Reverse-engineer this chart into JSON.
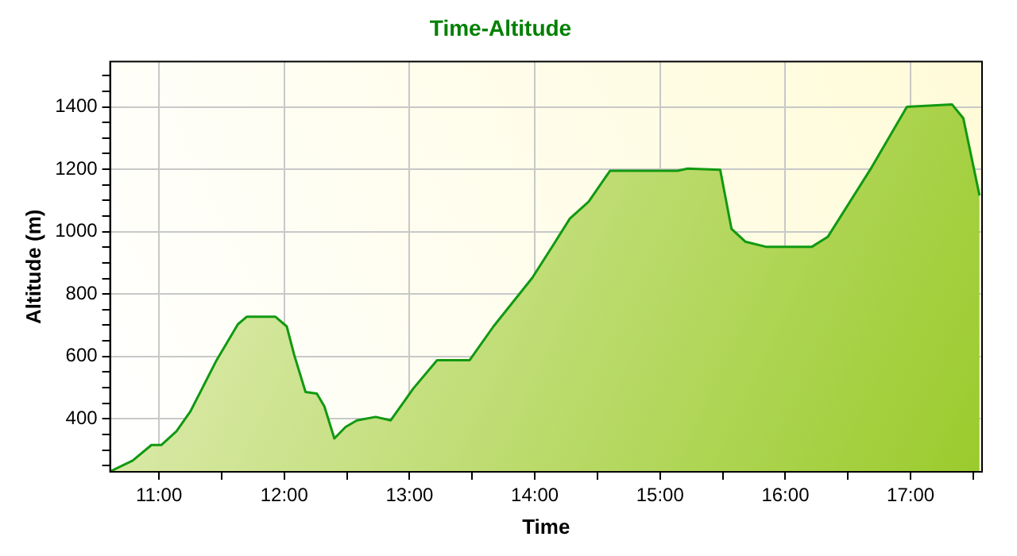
{
  "chart_data": {
    "type": "area",
    "title": "Time-Altitude",
    "xlabel": "Time",
    "ylabel": "Altitude (m)",
    "x": [
      10.62,
      10.79,
      10.94,
      11.02,
      11.14,
      11.25,
      11.46,
      11.63,
      11.7,
      11.93,
      12.02,
      12.08,
      12.17,
      12.26,
      12.32,
      12.4,
      12.49,
      12.58,
      12.73,
      12.85,
      13.03,
      13.22,
      13.48,
      13.67,
      13.98,
      14.15,
      14.28,
      14.43,
      14.6,
      15.14,
      15.22,
      15.48,
      15.57,
      15.68,
      15.85,
      16.21,
      16.34,
      16.69,
      16.97,
      17.33,
      17.42,
      17.55
    ],
    "series": [
      {
        "color": "#119911",
        "values": [
          233,
          266,
          316,
          316,
          360,
          423,
          588,
          703,
          727,
          727,
          696,
          604,
          486,
          481,
          440,
          337,
          374,
          395,
          406,
          395,
          497,
          588,
          588,
          696,
          852,
          959,
          1042,
          1096,
          1195,
          1195,
          1202,
          1198,
          1009,
          968,
          951,
          951,
          984,
          1207,
          1400,
          1408,
          1364,
          1116
        ]
      }
    ],
    "xlim": [
      10.61,
      17.57
    ],
    "xticks": [
      {
        "value": 11,
        "label": "11:00"
      },
      {
        "value": 11.5,
        "label": null
      },
      {
        "value": 12,
        "label": "12:00"
      },
      {
        "value": 12.5,
        "label": null
      },
      {
        "value": 13,
        "label": "13:00"
      },
      {
        "value": 13.5,
        "label": null
      },
      {
        "value": 14,
        "label": "14:00"
      },
      {
        "value": 14.5,
        "label": null
      },
      {
        "value": 15,
        "label": "15:00"
      },
      {
        "value": 15.5,
        "label": null
      },
      {
        "value": 16,
        "label": "16:00"
      },
      {
        "value": 16.5,
        "label": null
      },
      {
        "value": 17,
        "label": "17:00"
      },
      {
        "value": 17.5,
        "label": null
      }
    ],
    "ylim": [
      230,
      1545
    ],
    "yticks": [
      {
        "value": 250,
        "label": null
      },
      {
        "value": 300,
        "label": null
      },
      {
        "value": 350,
        "label": null
      },
      400,
      {
        "value": 450,
        "label": null
      },
      {
        "value": 500,
        "label": null
      },
      {
        "value": 550,
        "label": null
      },
      600,
      {
        "value": 650,
        "label": null
      },
      {
        "value": 700,
        "label": null
      },
      {
        "value": 750,
        "label": null
      },
      800,
      {
        "value": 850,
        "label": null
      },
      {
        "value": 900,
        "label": null
      },
      {
        "value": 950,
        "label": null
      },
      1000,
      {
        "value": 1050,
        "label": null
      },
      {
        "value": 1100,
        "label": null
      },
      {
        "value": 1150,
        "label": null
      },
      1200,
      {
        "value": 1250,
        "label": null
      },
      {
        "value": 1300,
        "label": null
      },
      {
        "value": 1350,
        "label": null
      },
      1400,
      {
        "value": 1450,
        "label": null
      },
      {
        "value": 1500,
        "label": null
      }
    ],
    "grid": true,
    "legend": false,
    "marker": "none",
    "line_style": "solid"
  }
}
